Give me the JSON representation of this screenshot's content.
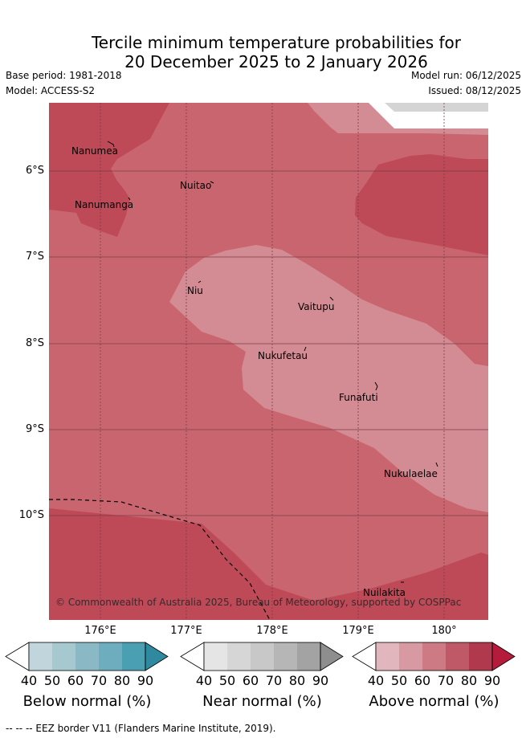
{
  "title": {
    "line1": "Tercile minimum temperature probabilities for",
    "line2": "20 December 2025 to 2 January 2026"
  },
  "meta": {
    "base_period": "Base period: 1981-2018",
    "model": "Model: ACCESS-S2",
    "model_run": "Model run: 06/12/2025",
    "issued": "Issued: 08/12/2025"
  },
  "map": {
    "lat_labels": [
      "6°S",
      "7°S",
      "8°S",
      "9°S",
      "10°S"
    ],
    "lon_labels": [
      "176°E",
      "177°E",
      "178°E",
      "179°E",
      "180°"
    ],
    "places": [
      "Nanumea",
      "Nuitao",
      "Nanumanga",
      "Niu",
      "Vaitupu",
      "Nukufetau",
      "Funafuti",
      "Nukulaelae",
      "Nuilakita"
    ],
    "copyright": "© Commonwealth of Australia 2025, Bureau of Meteorology, supported by COSPPac"
  },
  "colors": {
    "above_60": "#c9656f",
    "above_50": "#d48c94",
    "above_70": "#be4957",
    "no_data": "#d4d4d4",
    "below": [
      "#c0d6dc",
      "#a6c8cf",
      "#8ab9c5",
      "#6eadbd",
      "#4b9fb2",
      "#2f8aa0"
    ],
    "near": [
      "#e5e5e5",
      "#d6d6d6",
      "#c8c8c8",
      "#b6b6b6",
      "#a3a3a3",
      "#8e8e8e"
    ],
    "above": [
      "#e1b6bd",
      "#d79aa3",
      "#cd7a85",
      "#c05967",
      "#b1394d",
      "#b51c3c"
    ]
  },
  "legend": {
    "ticks": [
      "40",
      "50",
      "60",
      "70",
      "80",
      "90"
    ],
    "below_label": "Below normal (%)",
    "near_label": "Near normal (%)",
    "above_label": "Above normal (%)"
  },
  "footnote": "--  --  -- EEZ border V11 (Flanders Marine Institute, 2019)."
}
